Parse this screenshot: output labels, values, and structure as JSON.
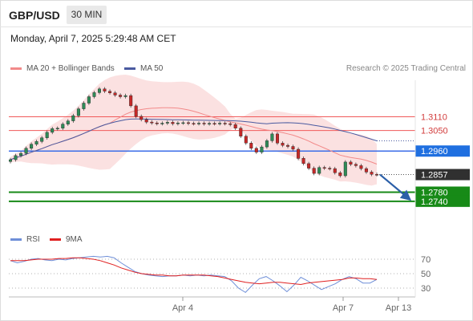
{
  "header": {
    "symbol": "GBP/USD",
    "timeframe": "30 MIN",
    "datetime": "Monday, April 7, 2025 5:29:48 AM CET"
  },
  "legend": {
    "ma20_label": "MA 20 + Bollinger Bands",
    "ma50_label": "MA 50",
    "copyright": "Research © 2025 Trading Central",
    "rsi_label": "RSI",
    "rsi_ma_label": "9MA"
  },
  "colors": {
    "resistance": "#f05a5a",
    "pivot": "#3c6ee8",
    "support": "#178a17",
    "ma20_band": "#f8c9c9",
    "ma20": "#f28a8a",
    "ma50": "#4a5aa0",
    "candle_up": "#2e8b57",
    "candle_down": "#c62828",
    "rsi": "#6f8fd8",
    "rsi_ma": "#e02020",
    "arrow": "#2b5fa8",
    "last_price_bg": "#303030"
  },
  "chart_data": {
    "type": "candlestick",
    "x_tick_labels": [
      "Apr 4",
      "Apr 7",
      "Apr 13"
    ],
    "y_range": [
      1.262,
      1.327
    ],
    "series": [
      {
        "name": "price",
        "values": [
          1.2922,
          1.294,
          1.295,
          1.2972,
          1.299,
          1.3002,
          1.3018,
          1.3042,
          1.3058,
          1.306,
          1.3078,
          1.3092,
          1.3115,
          1.3145,
          1.317,
          1.3198,
          1.3216,
          1.3232,
          1.3222,
          1.3215,
          1.3205,
          1.3198,
          1.3203,
          1.3158,
          1.3112,
          1.3098,
          1.3087,
          1.3083,
          1.308,
          1.3082,
          1.3086,
          1.308,
          1.3083,
          1.3084,
          1.3081,
          1.308,
          1.3082,
          1.3079,
          1.3081,
          1.308,
          1.3082,
          1.308,
          1.3076,
          1.306,
          1.3025,
          1.2995,
          1.2972,
          1.2955,
          1.2978,
          1.3005,
          1.3035,
          1.2995,
          1.2985,
          1.298,
          1.2968,
          1.2928,
          1.2905,
          1.2885,
          1.2862,
          1.2888,
          1.2885,
          1.2883,
          1.2865,
          1.2852,
          1.2912,
          1.2902,
          1.2896,
          1.2883,
          1.2868,
          1.2858,
          1.2857
        ]
      }
    ],
    "levels": [
      {
        "label": "1.3110",
        "value": 1.311,
        "kind": "resistance"
      },
      {
        "label": "1.3050",
        "value": 1.305,
        "kind": "resistance"
      },
      {
        "label": "1.2960",
        "value": 1.296,
        "kind": "pivot"
      },
      {
        "label": "1.2857",
        "value": 1.2857,
        "kind": "last"
      },
      {
        "label": "1.2780",
        "value": 1.278,
        "kind": "support"
      },
      {
        "label": "1.2740",
        "value": 1.274,
        "kind": "support"
      }
    ],
    "rsi": {
      "tick_labels": [
        "70",
        "50",
        "30"
      ],
      "ticks": [
        70,
        50,
        30
      ],
      "ylim": [
        20,
        80
      ],
      "rsi_values": [
        68,
        65,
        67,
        70,
        71,
        69,
        68,
        70,
        69,
        71,
        72,
        73,
        74,
        73,
        74,
        72,
        65,
        59,
        53,
        50,
        48,
        47,
        46,
        47,
        47,
        48,
        47,
        48,
        47,
        48,
        47,
        46,
        40,
        30,
        24,
        34,
        43,
        46,
        40,
        33,
        25,
        34,
        45,
        40,
        34,
        28,
        32,
        36,
        42,
        46,
        43,
        37,
        37,
        42
      ],
      "ma_values": [
        68,
        68,
        68,
        69,
        70,
        70,
        70,
        71,
        71,
        72,
        72,
        71,
        70,
        68,
        65,
        62,
        58,
        55,
        52,
        50,
        49,
        48,
        48,
        47,
        47,
        48,
        48,
        48,
        48,
        47,
        46,
        44,
        42,
        40,
        38,
        37,
        36,
        37,
        38,
        38,
        37,
        36,
        35,
        37,
        38,
        39,
        40,
        41,
        42,
        44,
        44,
        43,
        43,
        42
      ]
    }
  }
}
